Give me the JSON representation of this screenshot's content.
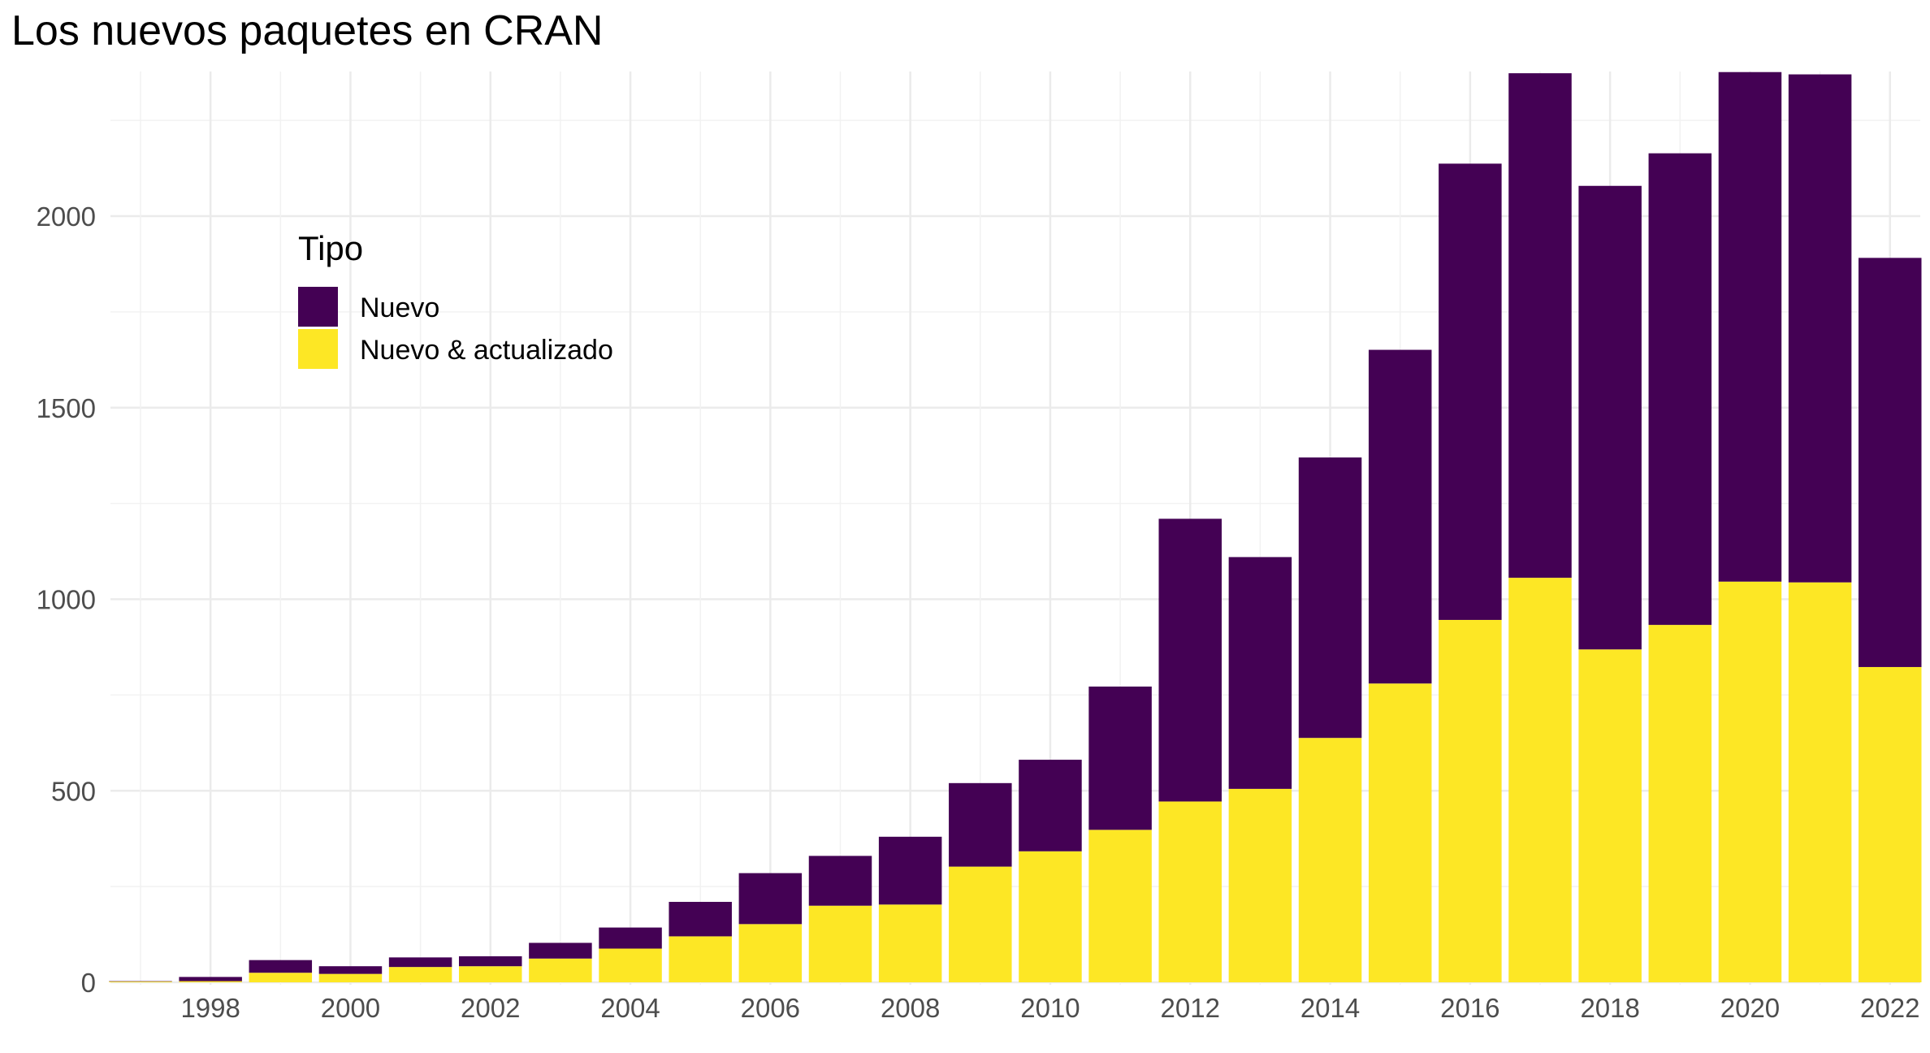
{
  "chart_data": {
    "type": "bar",
    "stacked": true,
    "title": "Los nuevos paquetes en CRAN",
    "xlabel": "",
    "ylabel": "",
    "x": [
      1997,
      1998,
      1999,
      2000,
      2001,
      2002,
      2003,
      2004,
      2005,
      2006,
      2007,
      2008,
      2009,
      2010,
      2011,
      2012,
      2013,
      2014,
      2015,
      2016,
      2017,
      2018,
      2019,
      2020,
      2021,
      2022
    ],
    "x_tick_labels": [
      "1998",
      "2000",
      "2002",
      "2004",
      "2006",
      "2008",
      "2010",
      "2012",
      "2014",
      "2016",
      "2018",
      "2020",
      "2022"
    ],
    "y_tick_labels": [
      "0",
      "500",
      "1000",
      "1500",
      "2000"
    ],
    "ylim": [
      0,
      2380
    ],
    "grid": true,
    "legend_position": "top-left inside",
    "legend_title": "Tipo",
    "series": [
      {
        "name": "Nuevo & actualizado",
        "color": "#FDE725",
        "values": [
          2,
          3,
          25,
          22,
          40,
          42,
          62,
          88,
          120,
          152,
          200,
          203,
          302,
          342,
          398,
          472,
          505,
          638,
          780,
          946,
          1056,
          869,
          933,
          1046,
          1044,
          823
        ]
      },
      {
        "name": "Nuevo",
        "color": "#440154",
        "values": [
          1,
          11,
          33,
          20,
          25,
          26,
          41,
          55,
          90,
          133,
          130,
          177,
          218,
          239,
          374,
          738,
          605,
          732,
          871,
          1191,
          1317,
          1210,
          1231,
          1330,
          1326,
          1068
        ]
      }
    ]
  }
}
